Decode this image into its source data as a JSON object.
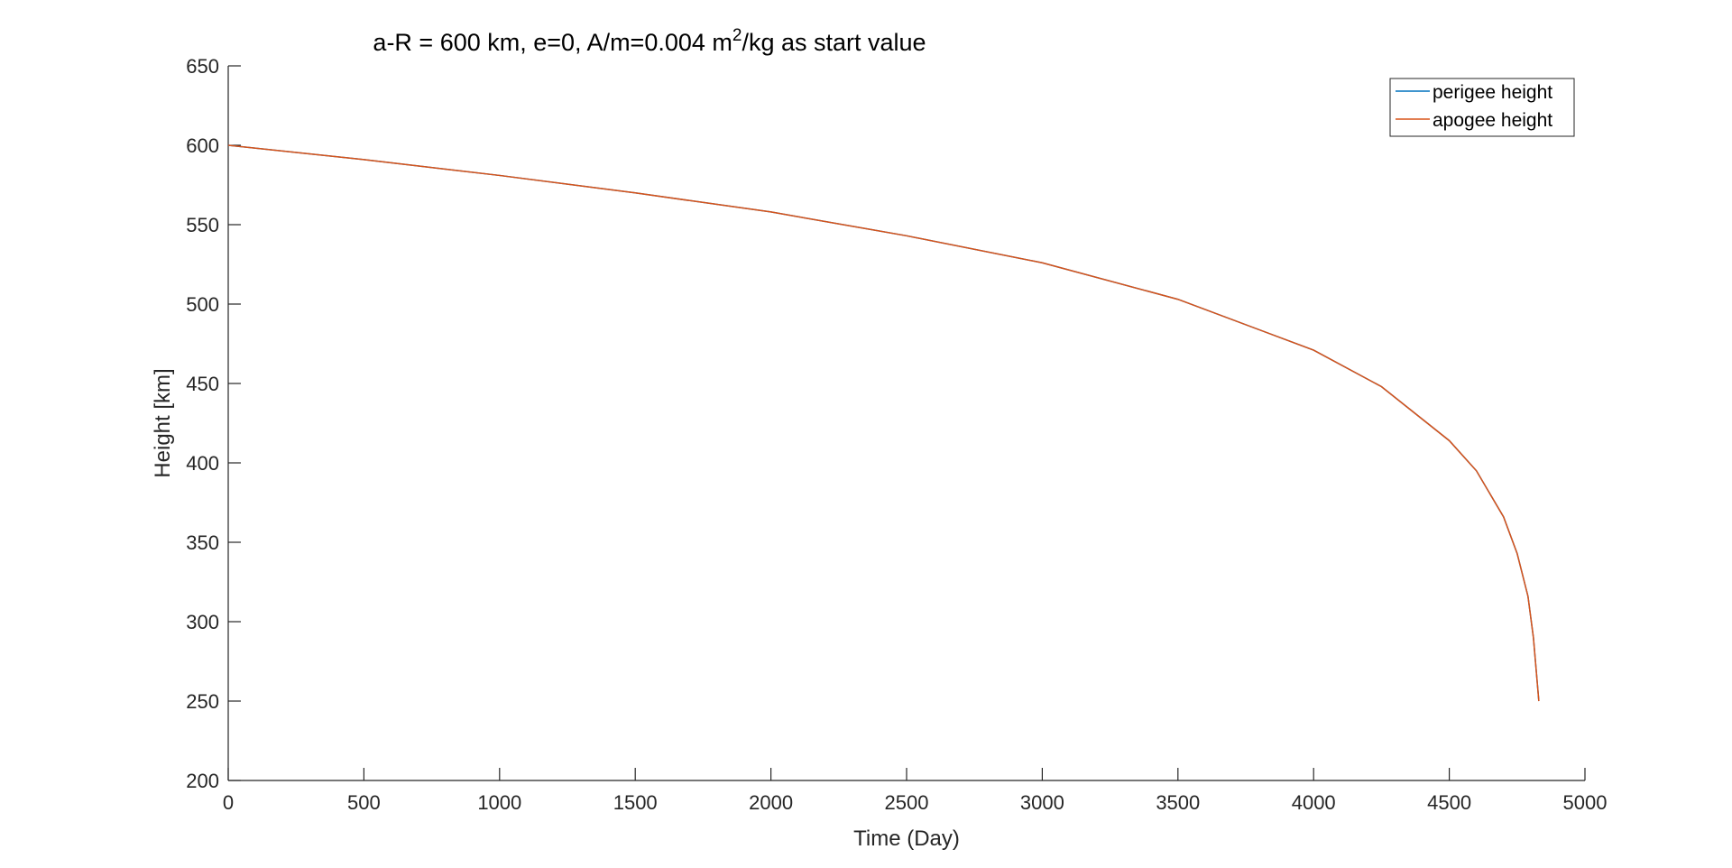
{
  "chart_data": {
    "type": "line",
    "title": {
      "main": "a-R = 600 km, e=0, A/m=0.004 m",
      "superscript": "2",
      "suffix": "/kg as start value"
    },
    "xlabel": "Time (Day)",
    "ylabel": "Height [km]",
    "xlim": [
      0,
      5000
    ],
    "ylim": [
      200,
      650
    ],
    "xticks": [
      0,
      500,
      1000,
      1500,
      2000,
      2500,
      3000,
      3500,
      4000,
      4500,
      5000
    ],
    "yticks": [
      200,
      250,
      300,
      350,
      400,
      450,
      500,
      550,
      600,
      650
    ],
    "xtick_labels": [
      "0",
      "500",
      "1000",
      "1500",
      "2000",
      "2500",
      "3000",
      "3500",
      "4000",
      "4500",
      "5000"
    ],
    "ytick_labels": [
      "200",
      "250",
      "300",
      "350",
      "400",
      "450",
      "500",
      "550",
      "600",
      "650"
    ],
    "grid": false,
    "legend_position": "top-right",
    "series": [
      {
        "name": "perigee height",
        "color": "#0072BD",
        "x": [
          0,
          500,
          1000,
          1500,
          2000,
          2500,
          3000,
          3500,
          4000,
          4250,
          4500,
          4600,
          4700,
          4750,
          4790,
          4810,
          4830
        ],
        "y": [
          600,
          591,
          581,
          570,
          558,
          543,
          526,
          503,
          471,
          448,
          414,
          395,
          366,
          343,
          316,
          290,
          250
        ]
      },
      {
        "name": "apogee height",
        "color": "#D95319",
        "x": [
          0,
          500,
          1000,
          1500,
          2000,
          2500,
          3000,
          3500,
          4000,
          4250,
          4500,
          4600,
          4700,
          4750,
          4790,
          4810,
          4830
        ],
        "y": [
          600,
          591,
          581,
          570,
          558,
          543,
          526,
          503,
          471,
          448,
          414,
          395,
          366,
          343,
          316,
          290,
          250
        ]
      }
    ]
  }
}
